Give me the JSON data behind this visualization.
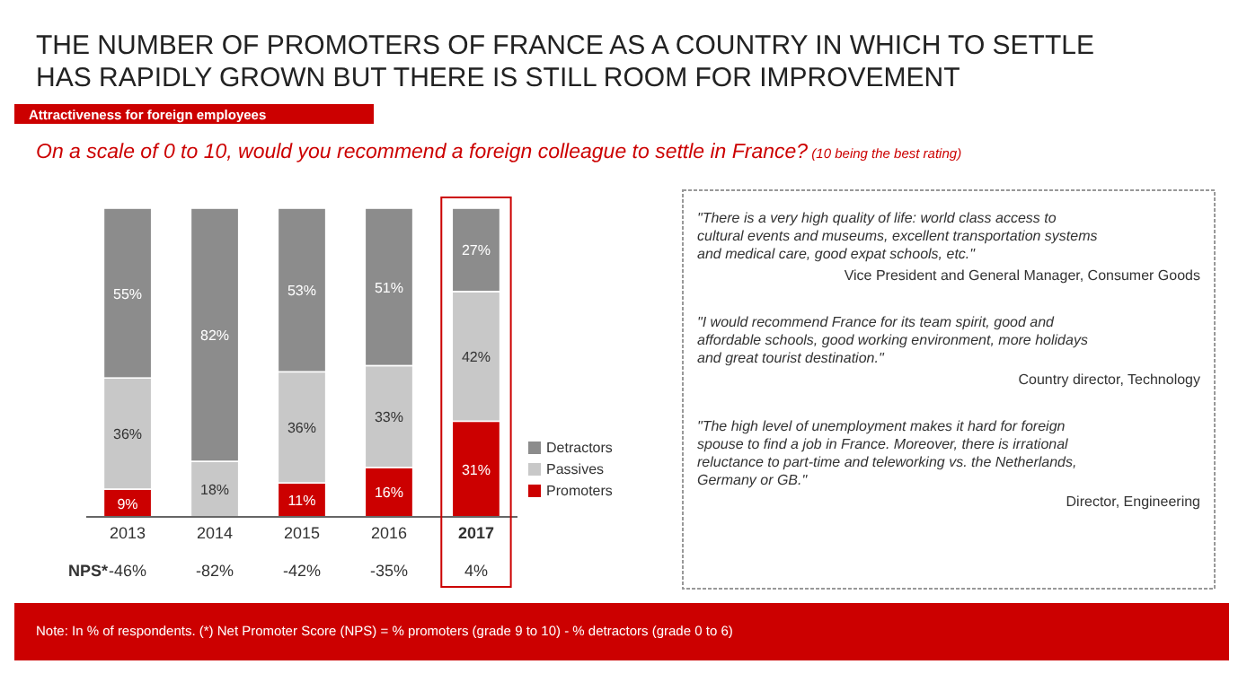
{
  "chart_data": {
    "type": "bar",
    "stacked": true,
    "title": "THE NUMBER OF PROMOTERS OF FRANCE AS A COUNTRY IN WHICH TO SETTLE HAS RAPIDLY GROWN BUT THERE IS STILL ROOM FOR IMPROVEMENT",
    "subtitle": "On a scale of 0 to 10, would you recommend a foreign colleague to settle in France? (10 being the best rating)",
    "categories": [
      "2013",
      "2014",
      "2015",
      "2016",
      "2017"
    ],
    "series": [
      {
        "name": "Promoters",
        "color": "#cc0000",
        "values": [
          9,
          null,
          11,
          16,
          31
        ],
        "value_labels": [
          "9%",
          null,
          "11%",
          "16%",
          "31%"
        ]
      },
      {
        "name": "Passives",
        "color": "#c8c8c8",
        "values": [
          36,
          18,
          36,
          33,
          42
        ],
        "value_labels": [
          "36%",
          "18%",
          "36%",
          "33%",
          "42%"
        ]
      },
      {
        "name": "Detractors",
        "color": "#8c8c8c",
        "values": [
          55,
          82,
          53,
          51,
          27
        ],
        "value_labels": [
          "55%",
          "82%",
          "53%",
          "51%",
          "27%"
        ]
      }
    ],
    "legend": "bottom right",
    "grid": false,
    "annotations": [
      "Attractiveness for foreign employees",
      "NPS*",
      "-46%",
      "-82%",
      "-42%",
      "-35%",
      "4%",
      "\"There is a very high quality of life: world class access to cultural events and museums, excellent transportation systems and medical care, good expat schools, etc.\"",
      "Vice President and General Manager, Consumer Goods",
      "\"I would recommend France for its team spirit, good and affordable schools, good working environment, more holidays and great tourist destination.\"",
      "Country director, Technology",
      "\"The high level of unemployment makes it hard for foreign spouse to find a job in France. Moreover, there is irrational reluctance to part-time and teleworking vs. the Netherlands, Germany or GB.\"",
      "Director, Engineering",
      "Note: In % of respondents. (*) Net Promoter Score (NPS) = % promoters (grade 9 to 10) - % detractors (grade 0 to 6)"
    ]
  }
}
